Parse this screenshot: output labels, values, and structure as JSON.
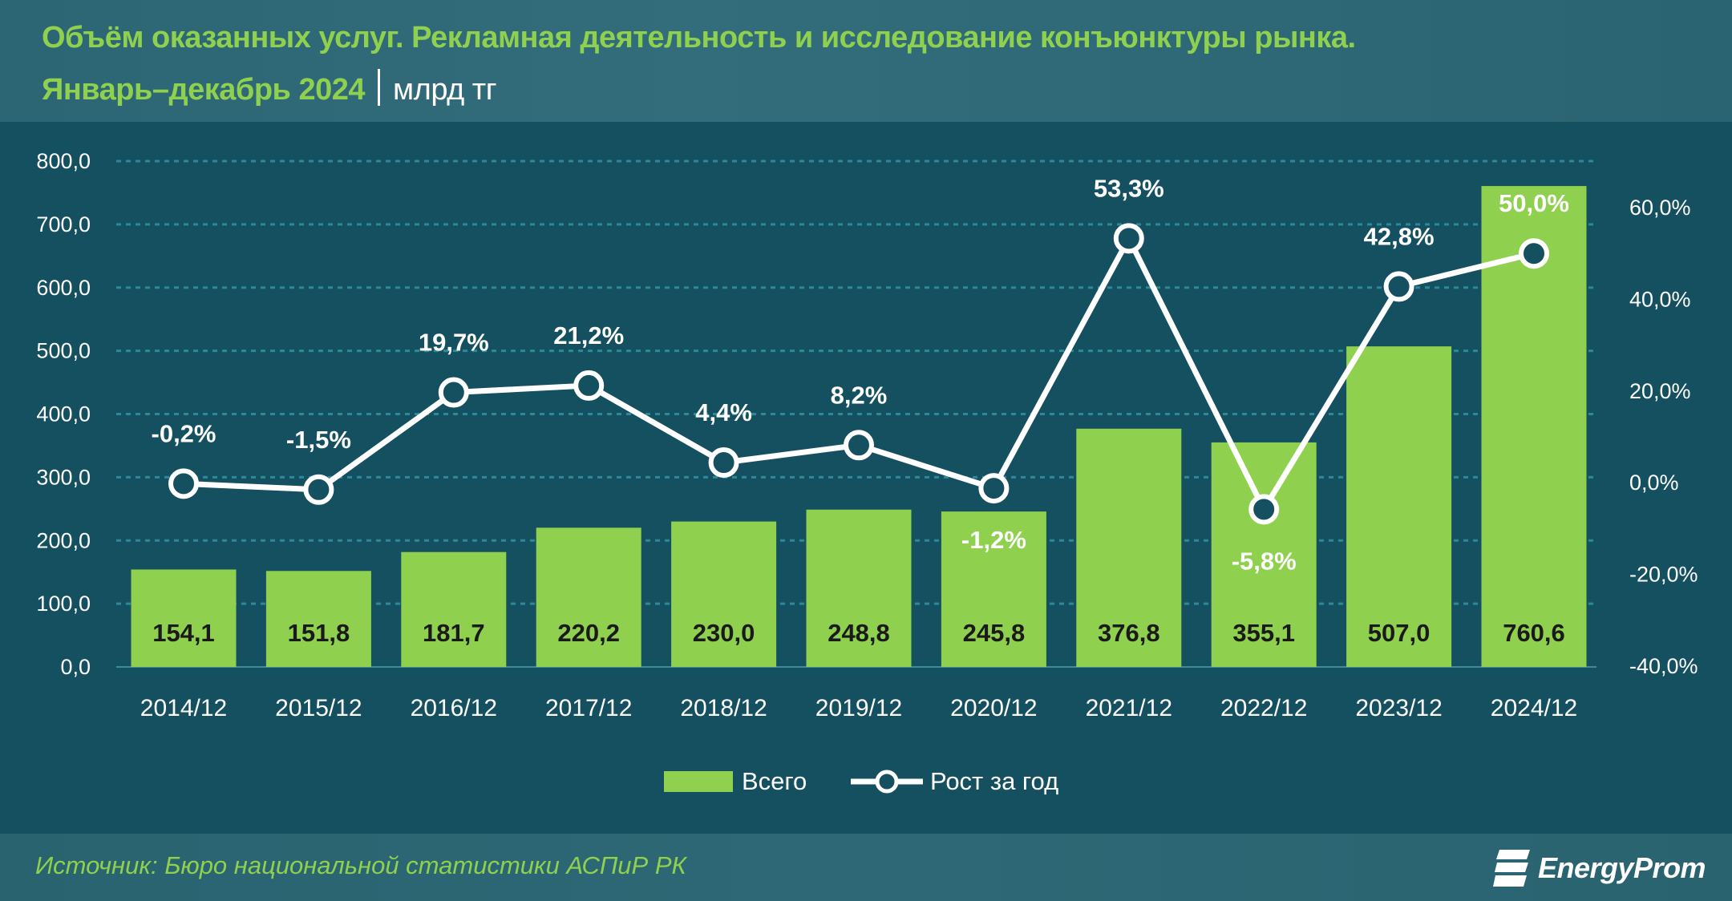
{
  "header": {
    "title_line1": "Объём оказанных услуг. Рекламная деятельность и исследование конъюнктуры рынка.",
    "title_line2": "Январь–декабрь 2024",
    "unit": "млрд тг"
  },
  "footer": {
    "source": "Источник: Бюро национальной статистики АСПиР РК",
    "logo_text": "EnergyProm"
  },
  "colors": {
    "bar": "#8fd14f",
    "line": "#ffffff",
    "background": "#14505f",
    "header": "#2f6a78",
    "title": "#8fd14f",
    "grid": "#2a8a9a"
  },
  "chart_data": {
    "type": "bar+line",
    "categories": [
      "2014/12",
      "2015/12",
      "2016/12",
      "2017/12",
      "2018/12",
      "2019/12",
      "2020/12",
      "2021/12",
      "2022/12",
      "2023/12",
      "2024/12"
    ],
    "series": [
      {
        "name": "Всего",
        "type": "bar",
        "axis": "left",
        "values": [
          154.1,
          151.8,
          181.7,
          220.2,
          230.0,
          248.8,
          245.8,
          376.8,
          355.1,
          507.0,
          760.6
        ],
        "labels": [
          "154,1",
          "151,8",
          "181,7",
          "220,2",
          "230,0",
          "248,8",
          "245,8",
          "376,8",
          "355,1",
          "507,0",
          "760,6"
        ]
      },
      {
        "name": "Рост за год",
        "type": "line",
        "axis": "right",
        "values": [
          -0.2,
          -1.5,
          19.7,
          21.2,
          4.4,
          8.2,
          -1.2,
          53.3,
          -5.8,
          42.8,
          50.0
        ],
        "labels": [
          "-0,2%",
          "-1,5%",
          "19,7%",
          "21,2%",
          "4,4%",
          "8,2%",
          "-1,2%",
          "53,3%",
          "-5,8%",
          "42,8%",
          "50,0%"
        ]
      }
    ],
    "left_axis": {
      "range": [
        0,
        800
      ],
      "ticks": [
        "0,0",
        "100,0",
        "200,0",
        "300,0",
        "400,0",
        "500,0",
        "600,0",
        "700,0",
        "800,0"
      ]
    },
    "right_axis": {
      "range": [
        -40,
        60
      ],
      "ticks": [
        "-40,0%",
        "-20,0%",
        "0,0%",
        "20,0%",
        "40,0%",
        "60,0%"
      ]
    },
    "grid": true,
    "legend": {
      "position": "bottom",
      "items": [
        "Всего",
        "Рост за год"
      ]
    }
  }
}
